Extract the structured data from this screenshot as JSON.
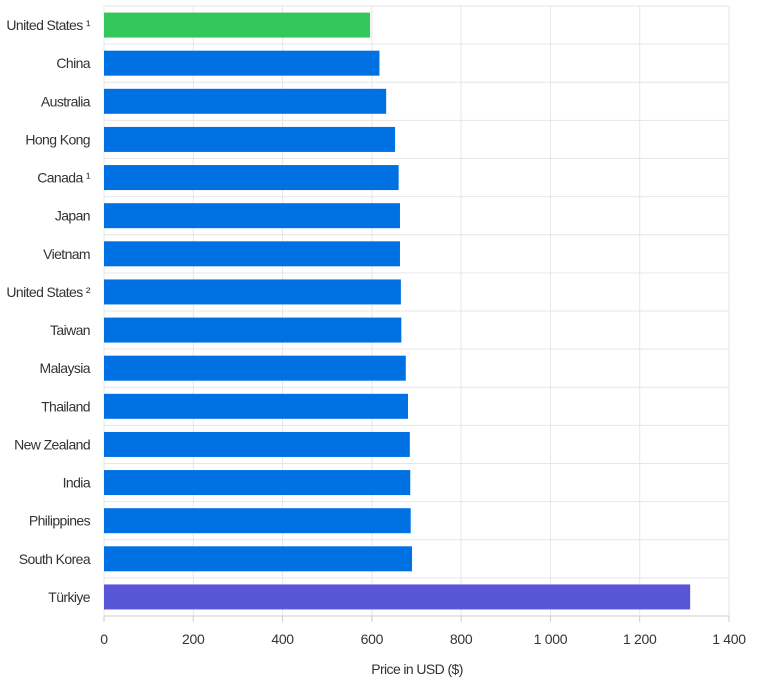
{
  "chart_data": {
    "type": "bar",
    "orientation": "horizontal",
    "categories": [
      "United States ¹",
      "China",
      "Australia",
      "Hong Kong",
      "Canada ¹",
      "Japan",
      "Vietnam",
      "United States ²",
      "Taiwan",
      "Malaysia",
      "Thailand",
      "New Zealand",
      "India",
      "Philippines",
      "South Korea",
      "Türkiye"
    ],
    "values": [
      596,
      617,
      632,
      652,
      660,
      663,
      663,
      665,
      666,
      676,
      681,
      685,
      686,
      687,
      690,
      1313
    ],
    "bar_colors": [
      "#34c759",
      "#0071e3",
      "#0071e3",
      "#0071e3",
      "#0071e3",
      "#0071e3",
      "#0071e3",
      "#0071e3",
      "#0071e3",
      "#0071e3",
      "#0071e3",
      "#0071e3",
      "#0071e3",
      "#0071e3",
      "#0071e3",
      "#5856d6"
    ],
    "xlabel": "Price in USD ($)",
    "xlim": [
      0,
      1400
    ],
    "xticks": [
      0,
      200,
      400,
      600,
      800,
      1000,
      1200,
      1400
    ],
    "xtick_labels": [
      "0",
      "200",
      "400",
      "600",
      "800",
      "1 000",
      "1 200",
      "1 400"
    ],
    "grid": true
  },
  "colors": {
    "grid": "#e6e6e6",
    "axis": "#cccccc",
    "text": "#333333"
  }
}
